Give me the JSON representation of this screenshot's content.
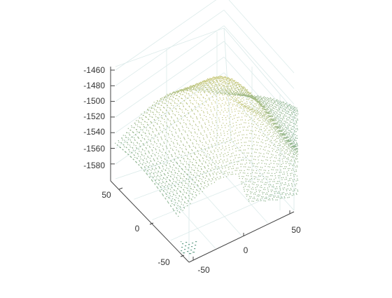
{
  "chart_data": {
    "type": "scatter",
    "title": "",
    "xlabel": "",
    "ylabel": "",
    "zlabel": "",
    "grid": true,
    "colormap": [
      "#5f9f8f",
      "#c9c97a"
    ],
    "x_ticks": [
      "-50",
      "0",
      "50"
    ],
    "y_ticks": [
      "-50",
      "0",
      "50"
    ],
    "z_ticks": [
      "-1460",
      "-1480",
      "-1500",
      "-1520",
      "-1540",
      "-1560",
      "-1580"
    ],
    "xlim": [
      -60,
      60
    ],
    "ylim": [
      -60,
      60
    ],
    "zlim": [
      -1590,
      -1455
    ]
  }
}
